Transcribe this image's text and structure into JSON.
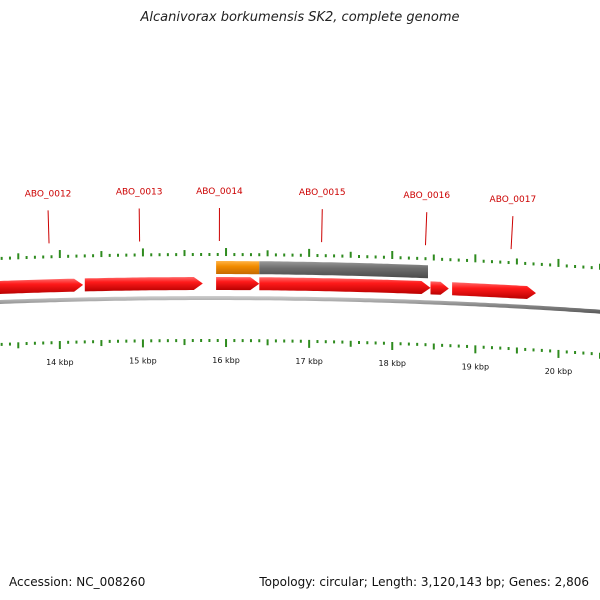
{
  "title": "Alcanivorax borkumensis SK2, complete genome",
  "footer": {
    "accession": "Accession: NC_008260",
    "summary": "Topology: circular; Length: 3,120,143 bp; Genes: 2,806"
  },
  "colors": {
    "gene": "#e8000b",
    "gene_highlight": "#f08a00",
    "feature_gray": "#666666",
    "backbone": "#777777",
    "tick": "#2e8b1e",
    "label": "#cc0000",
    "kbp_label": "#111111"
  },
  "view": {
    "start_bp": 13280,
    "end_bp": 20500
  },
  "scale_labels": [
    {
      "bp": 14000,
      "label": "14 kbp"
    },
    {
      "bp": 15000,
      "label": "15 kbp"
    },
    {
      "bp": 16000,
      "label": "16 kbp"
    },
    {
      "bp": 17000,
      "label": "17 kbp"
    },
    {
      "bp": 18000,
      "label": "18 kbp"
    },
    {
      "bp": 19000,
      "label": "19 kbp"
    },
    {
      "bp": 20000,
      "label": "20 kbp"
    }
  ],
  "genes": [
    {
      "start": 13280,
      "end": 14280,
      "strand": "+"
    },
    {
      "start": 14300,
      "end": 15720,
      "strand": "+"
    },
    {
      "start": 15880,
      "end": 16400,
      "strand": "+"
    },
    {
      "start": 16400,
      "end": 18460,
      "strand": "+"
    },
    {
      "start": 18460,
      "end": 18680,
      "strand": "+"
    },
    {
      "start": 18720,
      "end": 19730,
      "strand": "+"
    }
  ],
  "features": [
    {
      "start": 15880,
      "end": 16400,
      "kind": "highlight"
    },
    {
      "start": 16400,
      "end": 18430,
      "kind": "gray"
    }
  ],
  "gene_labels": [
    {
      "bp": 13870,
      "label": "ABO_0012"
    },
    {
      "bp": 14960,
      "label": "ABO_0013"
    },
    {
      "bp": 15920,
      "label": "ABO_0014"
    },
    {
      "bp": 17150,
      "label": "ABO_0015"
    },
    {
      "bp": 18400,
      "label": "ABO_0016"
    },
    {
      "bp": 19430,
      "label": "ABO_0017"
    }
  ]
}
